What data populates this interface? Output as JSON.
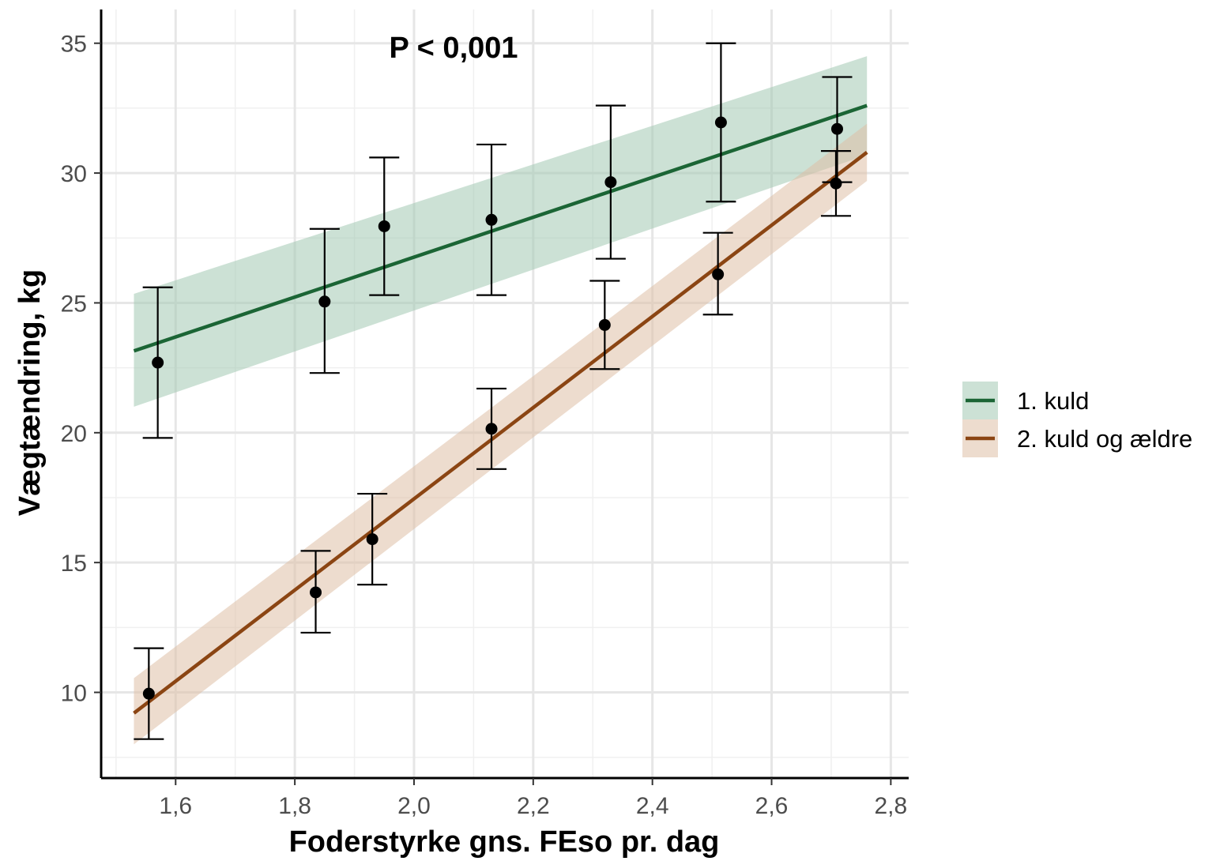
{
  "chart_data": {
    "type": "scatter",
    "title": "",
    "xlabel": "Foderstyrke gns. FEso pr. dag",
    "ylabel": "Vægtændring, kg",
    "annotation": "P < 0,001",
    "xlim": [
      1.475,
      2.83
    ],
    "ylim": [
      6.7,
      36.3
    ],
    "x_ticks": [
      1.6,
      1.8,
      2.0,
      2.2,
      2.4,
      2.6,
      2.8
    ],
    "x_tick_labels": [
      "1,6",
      "1,8",
      "2,0",
      "2,2",
      "2,4",
      "2,6",
      "2,8"
    ],
    "y_ticks": [
      10,
      15,
      20,
      25,
      30,
      35
    ],
    "y_tick_labels": [
      "10",
      "15",
      "20",
      "25",
      "30",
      "35"
    ],
    "grid": true,
    "legend_position": "right",
    "series": [
      {
        "name": "1. kuld",
        "color": "#1b6535",
        "band_color": "#a3c9b2",
        "points": [
          {
            "x": 1.57,
            "y": 22.7,
            "lo": 19.8,
            "hi": 25.6
          },
          {
            "x": 1.85,
            "y": 25.05,
            "lo": 22.3,
            "hi": 27.85
          },
          {
            "x": 1.95,
            "y": 27.95,
            "lo": 25.3,
            "hi": 30.6
          },
          {
            "x": 2.13,
            "y": 28.2,
            "lo": 25.3,
            "hi": 31.1
          },
          {
            "x": 2.33,
            "y": 29.65,
            "lo": 26.7,
            "hi": 32.6
          },
          {
            "x": 2.515,
            "y": 31.95,
            "lo": 28.9,
            "hi": 35.0
          },
          {
            "x": 2.71,
            "y": 31.7,
            "lo": 29.65,
            "hi": 33.7
          }
        ],
        "fit": {
          "x0": 1.53,
          "y0": 23.15,
          "x1": 2.76,
          "y1": 32.6
        },
        "band": {
          "lower0": 21.0,
          "upper0": 25.35,
          "lower1": 30.7,
          "upper1": 34.5
        }
      },
      {
        "name": "2. kuld og ældre",
        "color": "#8b4513",
        "band_color": "#dfbfa6",
        "points": [
          {
            "x": 1.555,
            "y": 9.95,
            "lo": 8.2,
            "hi": 11.7
          },
          {
            "x": 1.835,
            "y": 13.85,
            "lo": 12.3,
            "hi": 15.45
          },
          {
            "x": 1.93,
            "y": 15.9,
            "lo": 14.15,
            "hi": 17.65
          },
          {
            "x": 2.13,
            "y": 20.15,
            "lo": 18.6,
            "hi": 21.7
          },
          {
            "x": 2.32,
            "y": 24.15,
            "lo": 22.45,
            "hi": 25.85
          },
          {
            "x": 2.51,
            "y": 26.1,
            "lo": 24.55,
            "hi": 27.7
          },
          {
            "x": 2.708,
            "y": 29.6,
            "lo": 28.35,
            "hi": 30.85
          }
        ],
        "fit": {
          "x0": 1.53,
          "y0": 9.2,
          "x1": 2.76,
          "y1": 30.8
        },
        "band": {
          "lower0": 8.0,
          "upper0": 10.55,
          "lower1": 29.7,
          "upper1": 31.9
        }
      }
    ]
  }
}
